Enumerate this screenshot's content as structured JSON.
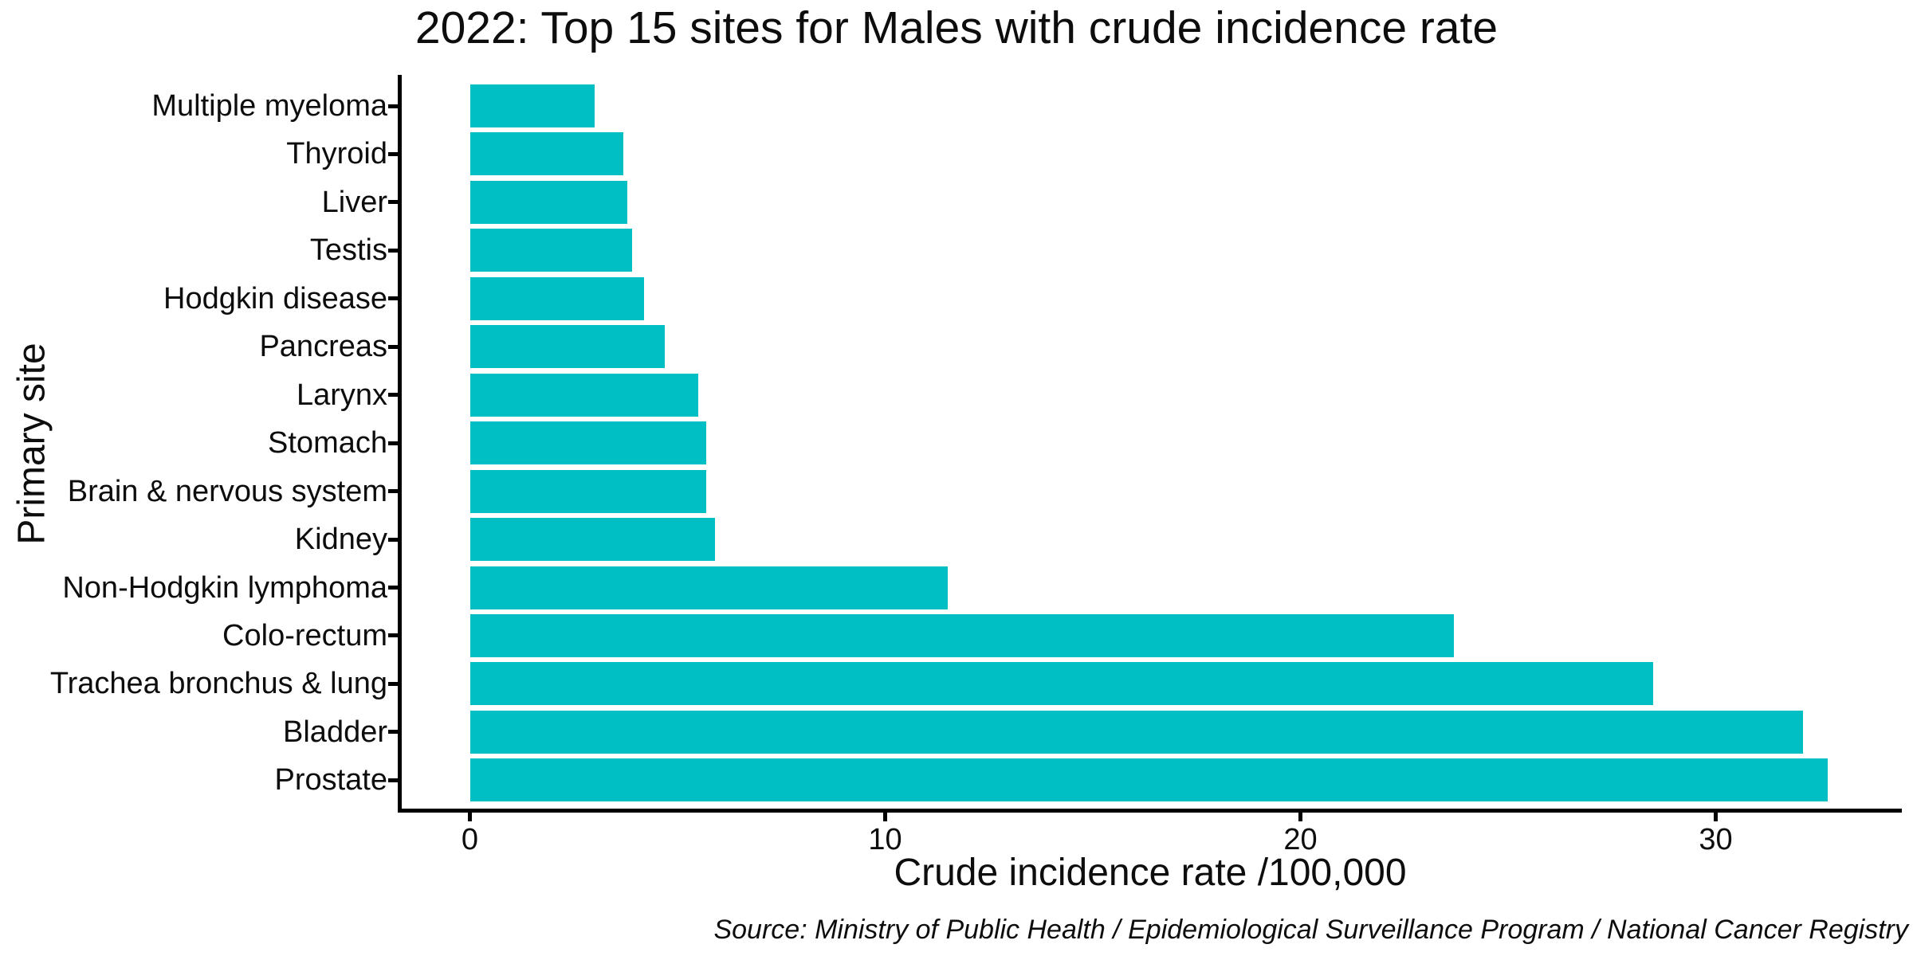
{
  "title": "2022: Top 15 sites for Males with crude incidence rate",
  "chart_data": {
    "type": "bar",
    "orientation": "horizontal",
    "title": "2022: Top 15 sites for Males with crude incidence rate",
    "xlabel": "Crude incidence rate /100,000",
    "ylabel": "Primary site",
    "source_note": "Source: Ministry of Public Health / Epidemiological Surveillance Program / National Cancer Registry",
    "categories": [
      "Multiple myeloma",
      "Thyroid",
      "Liver",
      "Testis",
      "Hodgkin disease",
      "Pancreas",
      "Larynx",
      "Stomach",
      "Brain & nervous system",
      "Kidney",
      "Non-Hodgkin lymphoma",
      "Colo-rectum",
      "Trachea bronchus & lung",
      "Bladder",
      "Prostate"
    ],
    "values": [
      3.0,
      3.7,
      3.8,
      3.9,
      4.2,
      4.7,
      5.5,
      5.7,
      5.7,
      5.9,
      11.5,
      23.7,
      28.5,
      32.1,
      32.7
    ],
    "category_order": "smallest at top, largest at bottom",
    "xticks": [
      0,
      10,
      20,
      30
    ],
    "xlim": [
      0,
      34.3
    ],
    "grid": false,
    "legend": false,
    "bar_color": "#00BFC4",
    "axis_color": "#000000",
    "background_color": "#ffffff"
  }
}
